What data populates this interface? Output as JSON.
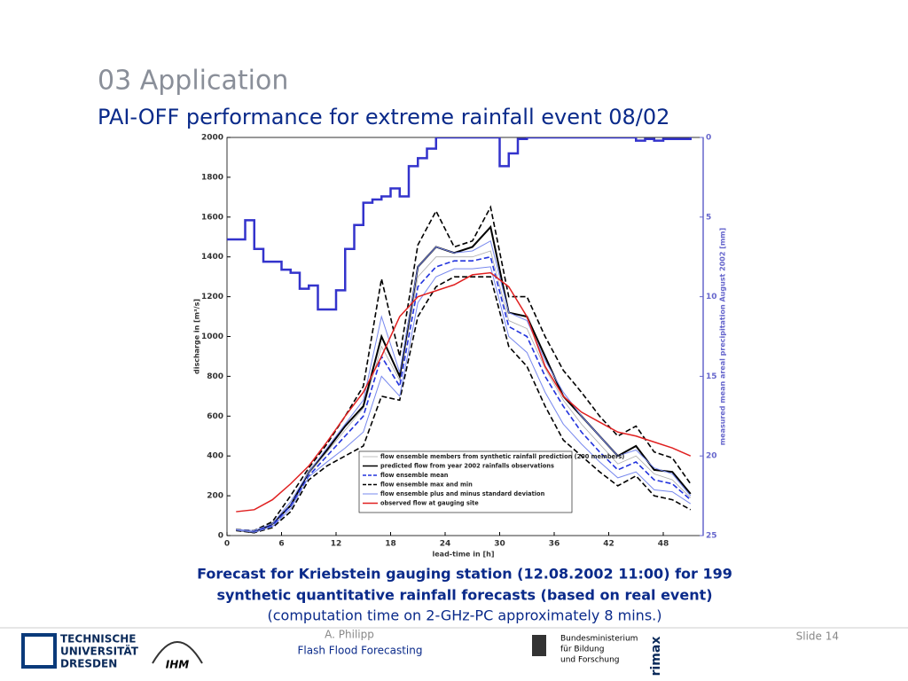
{
  "slide": {
    "heading": "03 Application",
    "subheading": "PAI-OFF performance for extreme rainfall event 08/02",
    "caption": [
      "Forecast for Kriebstein gauging station (12.08.2002 11:00) for 199",
      "synthetic quantitative rainfall forecasts (based on real event)",
      "(computation time on 2-GHz-PC approximately 8 mins.)"
    ],
    "author": "A. Philipp",
    "topic": "Flash Flood Forecasting",
    "slide_number": "Slide 14",
    "logos": {
      "tu": [
        "TECHNISCHE",
        "UNIVERSITÄT",
        "DRESDEN"
      ],
      "ihm": "IHM",
      "bmbf": [
        "Bundesministerium",
        "für Bildung",
        "und Forschung"
      ],
      "rimax": "rimax"
    }
  },
  "chart_data": {
    "type": "line",
    "x_label": "lead-time in [h]",
    "y_label": "discharge in [m³/s]",
    "y2_label": "measured mean areal precipitation August 2002 [mm]",
    "x": [
      1,
      3,
      5,
      7,
      9,
      11,
      13,
      15,
      17,
      19,
      21,
      23,
      25,
      27,
      29,
      31,
      33,
      35,
      37,
      39,
      41,
      43,
      45,
      47,
      49,
      51
    ],
    "xlim": [
      0,
      52
    ],
    "xticks": [
      0,
      6,
      12,
      18,
      24,
      30,
      36,
      42,
      48
    ],
    "ylim": [
      0,
      2000
    ],
    "yticks": [
      0,
      200,
      400,
      600,
      800,
      1000,
      1200,
      1400,
      1600,
      1800,
      2000
    ],
    "y2lim": [
      25,
      0
    ],
    "y2ticks": [
      0,
      5,
      10,
      15,
      20,
      25
    ],
    "series": [
      {
        "name": "flow ensemble members from synthetic rainfall prediction (200 members)",
        "color": "#aaaaaa",
        "width": 0.8,
        "values": [
          29,
          18,
          52,
          160,
          310,
          420,
          530,
          640,
          950,
          780,
          1300,
          1400,
          1400,
          1400,
          1430,
          1080,
          1040,
          840,
          680,
          560,
          460,
          360,
          400,
          310,
          280,
          190
        ]
      },
      {
        "name": "predicted flow from year 2002 rainfalls observations",
        "color": "#000000",
        "width": 2,
        "values": [
          30,
          15,
          60,
          150,
          320,
          430,
          550,
          650,
          1000,
          800,
          1350,
          1450,
          1420,
          1450,
          1550,
          1120,
          1100,
          900,
          700,
          600,
          500,
          400,
          450,
          330,
          320,
          210
        ]
      },
      {
        "name": "flow ensemble mean",
        "color": "#2233dd",
        "dash": true,
        "width": 1.6,
        "values": [
          30,
          20,
          50,
          150,
          300,
          400,
          500,
          600,
          900,
          750,
          1250,
          1350,
          1380,
          1380,
          1400,
          1050,
          1000,
          800,
          650,
          520,
          420,
          330,
          370,
          280,
          260,
          180
        ]
      },
      {
        "name": "flow ensemble max and min",
        "color": "#000000",
        "dash": true,
        "width": 1.6,
        "values": [
          30,
          25,
          70,
          200,
          340,
          460,
          600,
          750,
          1290,
          900,
          1460,
          1630,
          1450,
          1480,
          1650,
          1200,
          1200,
          1000,
          830,
          720,
          600,
          500,
          550,
          420,
          390,
          260
        ]
      },
      {
        "name": "flow ensemble max and min",
        "color": "#000000",
        "dash": true,
        "width": 1.6,
        "legend": false,
        "values": [
          25,
          15,
          40,
          120,
          280,
          350,
          400,
          450,
          700,
          680,
          1100,
          1250,
          1300,
          1300,
          1300,
          950,
          850,
          650,
          480,
          400,
          320,
          250,
          300,
          200,
          180,
          130
        ]
      },
      {
        "name": "flow ensemble plus and minus standard deviation",
        "color": "#7788ee",
        "width": 1,
        "values": [
          30,
          25,
          60,
          170,
          320,
          440,
          560,
          680,
          1100,
          820,
          1350,
          1450,
          1420,
          1430,
          1480,
          1120,
          1080,
          880,
          720,
          600,
          500,
          400,
          430,
          340,
          310,
          200
        ]
      },
      {
        "name": "flow ensemble plus and minus standard deviation",
        "color": "#7788ee",
        "width": 1,
        "legend": false,
        "values": [
          28,
          17,
          45,
          135,
          295,
          370,
          440,
          520,
          800,
          700,
          1170,
          1300,
          1340,
          1340,
          1350,
          1000,
          920,
          720,
          560,
          460,
          370,
          290,
          320,
          230,
          220,
          160
        ]
      },
      {
        "name": "observed flow at gauging site",
        "color": "#e02020",
        "width": 1.5,
        "values": [
          120,
          130,
          180,
          260,
          350,
          470,
          600,
          720,
          900,
          1100,
          1200,
          1230,
          1260,
          1310,
          1320,
          1250,
          1100,
          850,
          700,
          620,
          570,
          520,
          500,
          470,
          440,
          400
        ]
      },
      {
        "name": "measured mean areal precipitation",
        "color": "#3333cc",
        "width": 2.5,
        "axis": "y2",
        "step": true,
        "legend": false,
        "x": [
          0,
          1,
          2,
          3,
          4,
          5,
          6,
          7,
          8,
          9,
          10,
          11,
          12,
          13,
          14,
          15,
          16,
          17,
          18,
          19,
          20,
          21,
          22,
          23,
          24,
          25,
          26,
          27,
          28,
          29,
          30,
          31,
          32,
          33,
          34,
          35,
          36,
          37,
          38,
          39,
          40,
          41,
          42,
          43,
          44,
          45,
          46,
          47,
          48,
          49,
          50,
          51
        ],
        "values": [
          6.4,
          6.4,
          5.2,
          7,
          7.8,
          7.8,
          8.3,
          8.5,
          9.5,
          9.3,
          10.8,
          10.8,
          9.6,
          7,
          5.5,
          4.1,
          3.9,
          3.7,
          3.2,
          3.7,
          1.8,
          1.3,
          0.7,
          0,
          0,
          0,
          0,
          0,
          0,
          0,
          1.8,
          1,
          0.1,
          0,
          0,
          0,
          0,
          0,
          0,
          0,
          0,
          0,
          0,
          0,
          0,
          0.2,
          0.1,
          0.2,
          0.1,
          0.1,
          0.1,
          0
        ]
      }
    ]
  }
}
